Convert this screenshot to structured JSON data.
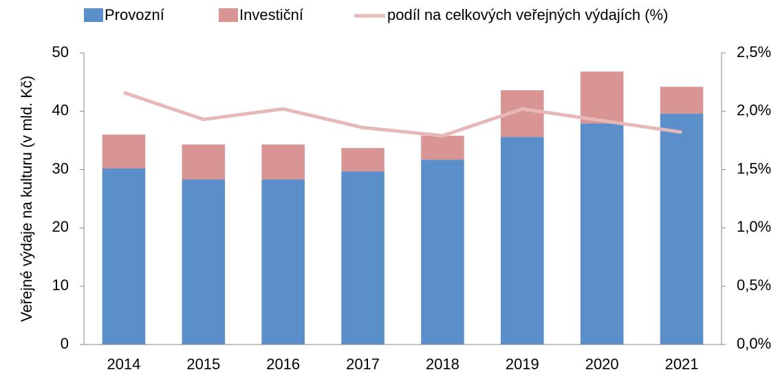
{
  "chart_data": {
    "type": "bar",
    "stacked": true,
    "y_label": "Veřejné výdaje na kulturu (v mld. Kč)",
    "categories": [
      "2014",
      "2015",
      "2016",
      "2017",
      "2018",
      "2019",
      "2020",
      "2021"
    ],
    "series": [
      {
        "name": "Provozní",
        "color": "#5b8fc9",
        "values": [
          30.2,
          28.3,
          28.3,
          29.7,
          31.7,
          35.6,
          37.9,
          39.6
        ]
      },
      {
        "name": "Investiční",
        "color": "#d99594",
        "values": [
          5.8,
          6.0,
          6.0,
          4.0,
          4.1,
          8.0,
          8.9,
          4.6
        ]
      },
      {
        "name": "podíl na celkových veřejných výdajích (%)",
        "color": "#e6b9b8",
        "type": "line",
        "axis": "y2",
        "values": [
          2.16,
          1.93,
          2.02,
          1.86,
          1.79,
          2.02,
          1.92,
          1.82
        ]
      }
    ],
    "ylim": [
      0,
      50
    ],
    "yticks": [
      0,
      10,
      20,
      30,
      40,
      50
    ],
    "y2lim": [
      0,
      2.5
    ],
    "y2ticks": [
      {
        "value": 0,
        "label": "0,0%"
      },
      {
        "value": 0.5,
        "label": "0,5%"
      },
      {
        "value": 1.0,
        "label": "1,0%"
      },
      {
        "value": 1.5,
        "label": "1,5%"
      },
      {
        "value": 2.0,
        "label": "2,0%"
      },
      {
        "value": 2.5,
        "label": "2,5%"
      }
    ],
    "legend": "top"
  }
}
